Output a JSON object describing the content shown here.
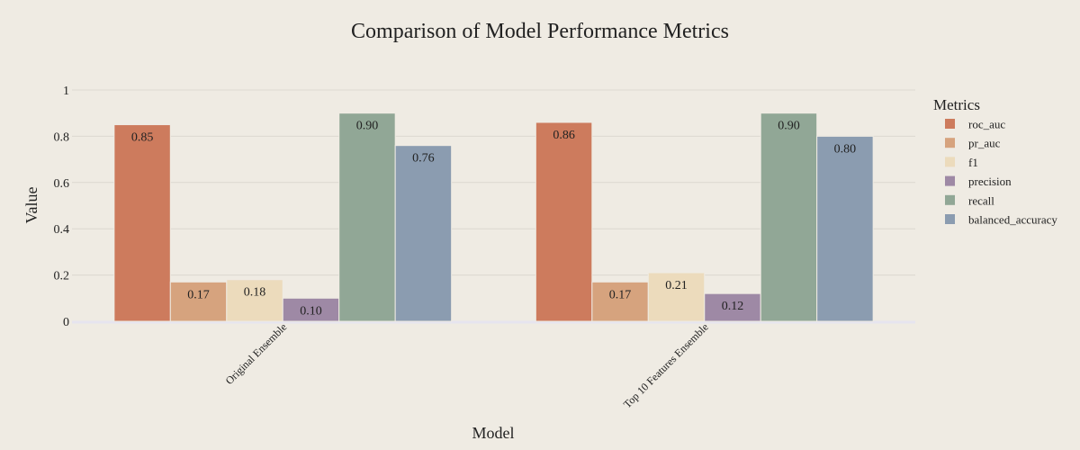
{
  "chart_data": {
    "type": "bar",
    "title": "Comparison of Model Performance Metrics",
    "xlabel": "Model",
    "ylabel": "Value",
    "ylim": [
      0,
      1
    ],
    "yticks": [
      {
        "value": 0,
        "label": "0"
      },
      {
        "value": 0.2,
        "label": "0.2"
      },
      {
        "value": 0.4,
        "label": "0.4"
      },
      {
        "value": 0.6,
        "label": "0.6"
      },
      {
        "value": 0.8,
        "label": "0.8"
      },
      {
        "value": 1,
        "label": "1"
      }
    ],
    "categories": [
      "Original Ensemble",
      "Top 10 Features Ensemble"
    ],
    "legend_title": "Metrics",
    "legend_position": "right",
    "grid": true,
    "series": [
      {
        "name": "roc_auc",
        "color": "#cd7b5d",
        "values": [
          0.85,
          0.86
        ],
        "labels": [
          "0.85",
          "0.86"
        ]
      },
      {
        "name": "pr_auc",
        "color": "#d6a37e",
        "values": [
          0.17,
          0.17
        ],
        "labels": [
          "0.17",
          "0.17"
        ]
      },
      {
        "name": "f1",
        "color": "#ecdbbc",
        "values": [
          0.18,
          0.21
        ],
        "labels": [
          "0.18",
          "0.21"
        ]
      },
      {
        "name": "precision",
        "color": "#9e89a5",
        "values": [
          0.1,
          0.12
        ],
        "labels": [
          "0.10",
          "0.12"
        ]
      },
      {
        "name": "recall",
        "color": "#91a796",
        "values": [
          0.9,
          0.9
        ],
        "labels": [
          "0.90",
          "0.90"
        ]
      },
      {
        "name": "balanced_accuracy",
        "color": "#8b9cb0",
        "values": [
          0.76,
          0.8
        ],
        "labels": [
          "0.76",
          "0.80"
        ]
      }
    ]
  }
}
